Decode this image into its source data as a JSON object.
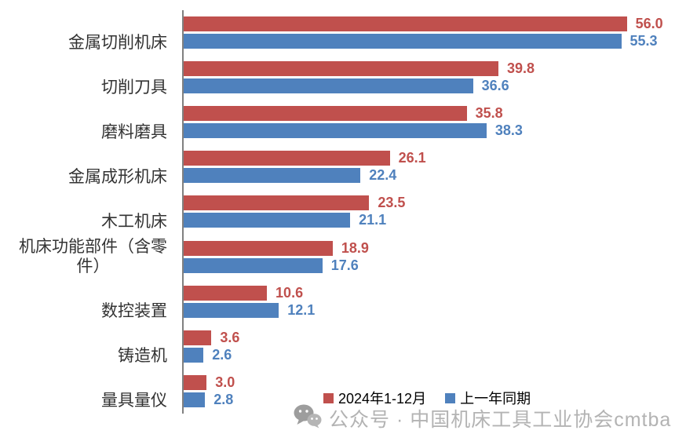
{
  "chart_data": {
    "type": "bar",
    "orientation": "horizontal",
    "title": "",
    "categories": [
      "金属切削机床",
      "切削刀具",
      "磨料磨具",
      "金属成形机床",
      "木工机床",
      "机床功能部件（含零\n件）",
      "数控装置",
      "铸造机",
      "量具量仪"
    ],
    "series": [
      {
        "name": "2024年1-12月",
        "color": "#C0504D",
        "values": [
          56.0,
          39.8,
          35.8,
          26.1,
          23.5,
          18.9,
          10.6,
          3.6,
          3.0
        ]
      },
      {
        "name": "上一年同期",
        "color": "#4F81BD",
        "values": [
          55.3,
          36.6,
          38.3,
          22.4,
          21.1,
          17.6,
          12.1,
          2.6,
          2.8
        ]
      }
    ],
    "xlim": [
      0,
      60
    ],
    "data_labels": true,
    "legend_position": "bottom",
    "grid": false,
    "axis_color": "#808080"
  },
  "watermark": {
    "icon": "wechat-icon",
    "text": "公众号 · 中国机床工具工业协会cmtba",
    "text_color": "#b3b3b3",
    "icon_color": "#9d9d9d"
  }
}
